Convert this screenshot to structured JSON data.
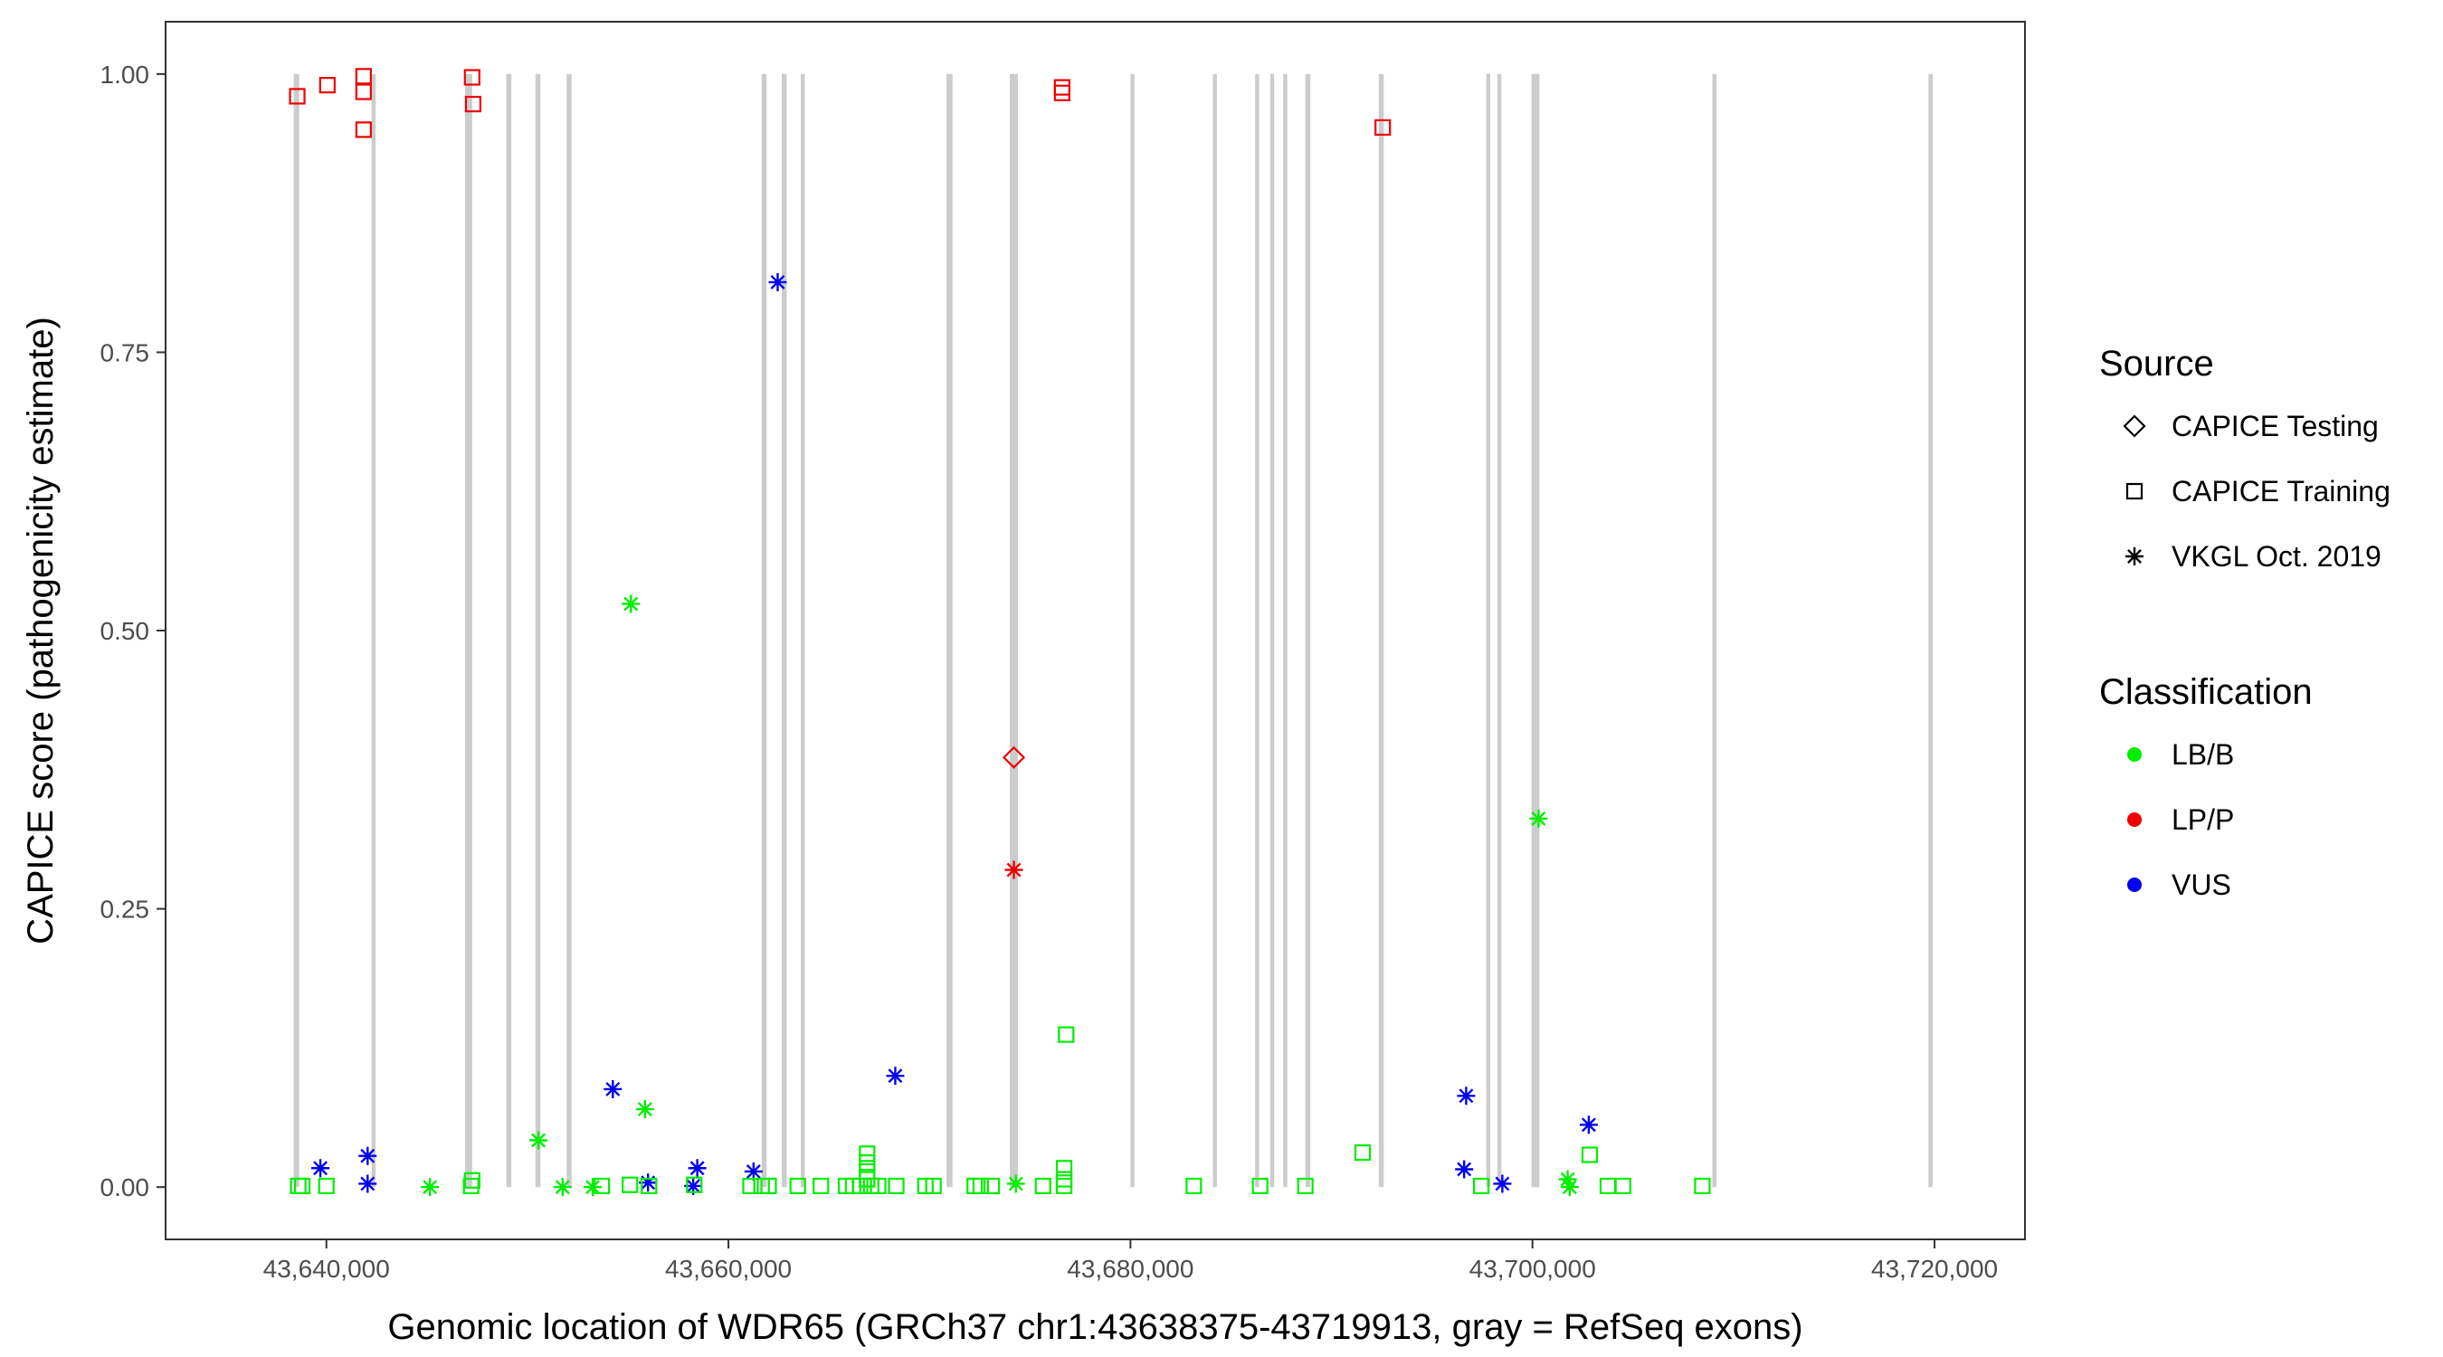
{
  "chart_data": {
    "type": "scatter",
    "xlabel": "Genomic location of WDR65 (GRCh37 chr1:43638375-43719913, gray = RefSeq exons)",
    "ylabel": "CAPICE score (pathogenicity estimate)",
    "xlim": [
      43632000,
      43724500
    ],
    "ylim": [
      -0.047,
      1.047
    ],
    "x_ticks": [
      43640000,
      43660000,
      43680000,
      43700000,
      43720000
    ],
    "x_tick_labels": [
      "43,640,000",
      "43,660,000",
      "43,680,000",
      "43,700,000",
      "43,720,000"
    ],
    "y_ticks": [
      0,
      0.25,
      0.5,
      0.75,
      1.0
    ],
    "y_tick_labels": [
      "0.00",
      "0.25",
      "0.50",
      "0.75",
      "1.00"
    ],
    "grid": false,
    "exons": [
      {
        "start": 43638375,
        "end": 43638650
      },
      {
        "start": 43642250,
        "end": 43642450
      },
      {
        "start": 43646900,
        "end": 43647250
      },
      {
        "start": 43648950,
        "end": 43649200
      },
      {
        "start": 43650400,
        "end": 43650650
      },
      {
        "start": 43651950,
        "end": 43652200
      },
      {
        "start": 43661650,
        "end": 43661900
      },
      {
        "start": 43662650,
        "end": 43662900
      },
      {
        "start": 43663600,
        "end": 43663800
      },
      {
        "start": 43670850,
        "end": 43671150
      },
      {
        "start": 43674000,
        "end": 43674400
      },
      {
        "start": 43680000,
        "end": 43680200
      },
      {
        "start": 43684100,
        "end": 43684300
      },
      {
        "start": 43686200,
        "end": 43686400
      },
      {
        "start": 43686950,
        "end": 43687150
      },
      {
        "start": 43687600,
        "end": 43687800
      },
      {
        "start": 43688700,
        "end": 43688950
      },
      {
        "start": 43692350,
        "end": 43692600
      },
      {
        "start": 43697700,
        "end": 43697900
      },
      {
        "start": 43698250,
        "end": 43698450
      },
      {
        "start": 43699950,
        "end": 43700350
      },
      {
        "start": 43708950,
        "end": 43709150
      },
      {
        "start": 43719700,
        "end": 43719913
      }
    ],
    "colors": {
      "LB/B": "#00ee00",
      "LP/P": "#ee0000",
      "VUS": "#0000ee",
      "exon": "#cccccc"
    },
    "points": [
      {
        "x": 43638550,
        "y": 0.98,
        "source": "CAPICE Training",
        "class": "LP/P"
      },
      {
        "x": 43640050,
        "y": 0.99,
        "source": "CAPICE Training",
        "class": "LP/P"
      },
      {
        "x": 43641850,
        "y": 0.998,
        "source": "CAPICE Training",
        "class": "LP/P"
      },
      {
        "x": 43641850,
        "y": 0.984,
        "source": "CAPICE Training",
        "class": "LP/P"
      },
      {
        "x": 43641850,
        "y": 0.95,
        "source": "CAPICE Training",
        "class": "LP/P"
      },
      {
        "x": 43647250,
        "y": 0.997,
        "source": "CAPICE Training",
        "class": "LP/P"
      },
      {
        "x": 43647300,
        "y": 0.973,
        "source": "CAPICE Training",
        "class": "LP/P"
      },
      {
        "x": 43676600,
        "y": 0.988,
        "source": "CAPICE Training",
        "class": "LP/P"
      },
      {
        "x": 43676600,
        "y": 0.983,
        "source": "CAPICE Training",
        "class": "LP/P"
      },
      {
        "x": 43692550,
        "y": 0.952,
        "source": "CAPICE Training",
        "class": "LP/P"
      },
      {
        "x": 43662450,
        "y": 0.813,
        "source": "VKGL Oct. 2019",
        "class": "VUS"
      },
      {
        "x": 43655150,
        "y": 0.524,
        "source": "VKGL Oct. 2019",
        "class": "LB/B"
      },
      {
        "x": 43674200,
        "y": 0.386,
        "source": "CAPICE Testing",
        "class": "LP/P"
      },
      {
        "x": 43700300,
        "y": 0.331,
        "source": "VKGL Oct. 2019",
        "class": "LB/B"
      },
      {
        "x": 43674200,
        "y": 0.285,
        "source": "VKGL Oct. 2019",
        "class": "LP/P"
      },
      {
        "x": 43676800,
        "y": 0.137,
        "source": "CAPICE Training",
        "class": "LB/B"
      },
      {
        "x": 43668300,
        "y": 0.1,
        "source": "VKGL Oct. 2019",
        "class": "VUS"
      },
      {
        "x": 43654250,
        "y": 0.088,
        "source": "VKGL Oct. 2019",
        "class": "VUS"
      },
      {
        "x": 43696700,
        "y": 0.082,
        "source": "VKGL Oct. 2019",
        "class": "VUS"
      },
      {
        "x": 43655850,
        "y": 0.07,
        "source": "VKGL Oct. 2019",
        "class": "LB/B"
      },
      {
        "x": 43702800,
        "y": 0.056,
        "source": "VKGL Oct. 2019",
        "class": "VUS"
      },
      {
        "x": 43650550,
        "y": 0.042,
        "source": "VKGL Oct. 2019",
        "class": "LB/B"
      },
      {
        "x": 43691550,
        "y": 0.031,
        "source": "CAPICE Training",
        "class": "LB/B"
      },
      {
        "x": 43702850,
        "y": 0.029,
        "source": "CAPICE Training",
        "class": "LB/B"
      },
      {
        "x": 43642050,
        "y": 0.028,
        "source": "VKGL Oct. 2019",
        "class": "VUS"
      },
      {
        "x": 43666900,
        "y": 0.03,
        "source": "CAPICE Training",
        "class": "LB/B"
      },
      {
        "x": 43666900,
        "y": 0.022,
        "source": "CAPICE Training",
        "class": "LB/B"
      },
      {
        "x": 43666900,
        "y": 0.014,
        "source": "CAPICE Training",
        "class": "LB/B"
      },
      {
        "x": 43666900,
        "y": 0.007,
        "source": "CAPICE Training",
        "class": "LB/B"
      },
      {
        "x": 43639700,
        "y": 0.017,
        "source": "VKGL Oct. 2019",
        "class": "VUS"
      },
      {
        "x": 43658450,
        "y": 0.017,
        "source": "VKGL Oct. 2019",
        "class": "VUS"
      },
      {
        "x": 43661250,
        "y": 0.014,
        "source": "VKGL Oct. 2019",
        "class": "VUS"
      },
      {
        "x": 43696600,
        "y": 0.016,
        "source": "VKGL Oct. 2019",
        "class": "VUS"
      },
      {
        "x": 43676700,
        "y": 0.017,
        "source": "CAPICE Training",
        "class": "LB/B"
      },
      {
        "x": 43676700,
        "y": 0.007,
        "source": "CAPICE Training",
        "class": "LB/B"
      },
      {
        "x": 43701750,
        "y": 0.007,
        "source": "VKGL Oct. 2019",
        "class": "LB/B"
      },
      {
        "x": 43647250,
        "y": 0.006,
        "source": "CAPICE Training",
        "class": "LB/B"
      },
      {
        "x": 43656000,
        "y": 0.004,
        "source": "VKGL Oct. 2019",
        "class": "VUS"
      },
      {
        "x": 43642050,
        "y": 0.003,
        "source": "VKGL Oct. 2019",
        "class": "VUS"
      },
      {
        "x": 43698500,
        "y": 0.003,
        "source": "VKGL Oct. 2019",
        "class": "VUS"
      },
      {
        "x": 43658250,
        "y": 0.001,
        "source": "VKGL Oct. 2019",
        "class": "VUS"
      },
      {
        "x": 43674300,
        "y": 0.003,
        "source": "VKGL Oct. 2019",
        "class": "LB/B"
      },
      {
        "x": 43638600,
        "y": 0.001,
        "source": "CAPICE Training",
        "class": "LB/B"
      },
      {
        "x": 43638800,
        "y": 0.001,
        "source": "CAPICE Training",
        "class": "LB/B"
      },
      {
        "x": 43640000,
        "y": 0.001,
        "source": "CAPICE Training",
        "class": "LB/B"
      },
      {
        "x": 43645150,
        "y": 0.0,
        "source": "VKGL Oct. 2019",
        "class": "LB/B"
      },
      {
        "x": 43647200,
        "y": 0.001,
        "source": "CAPICE Training",
        "class": "LB/B"
      },
      {
        "x": 43651750,
        "y": 0.0,
        "source": "VKGL Oct. 2019",
        "class": "LB/B"
      },
      {
        "x": 43653250,
        "y": 0.0,
        "source": "VKGL Oct. 2019",
        "class": "LB/B"
      },
      {
        "x": 43653700,
        "y": 0.001,
        "source": "CAPICE Training",
        "class": "LB/B"
      },
      {
        "x": 43655100,
        "y": 0.002,
        "source": "CAPICE Training",
        "class": "LB/B"
      },
      {
        "x": 43656050,
        "y": 0.001,
        "source": "CAPICE Training",
        "class": "LB/B"
      },
      {
        "x": 43658300,
        "y": 0.002,
        "source": "CAPICE Training",
        "class": "LB/B"
      },
      {
        "x": 43661100,
        "y": 0.001,
        "source": "CAPICE Training",
        "class": "LB/B"
      },
      {
        "x": 43661650,
        "y": 0.001,
        "source": "CAPICE Training",
        "class": "LB/B"
      },
      {
        "x": 43662000,
        "y": 0.001,
        "source": "CAPICE Training",
        "class": "LB/B"
      },
      {
        "x": 43663450,
        "y": 0.001,
        "source": "CAPICE Training",
        "class": "LB/B"
      },
      {
        "x": 43664600,
        "y": 0.001,
        "source": "CAPICE Training",
        "class": "LB/B"
      },
      {
        "x": 43665850,
        "y": 0.001,
        "source": "CAPICE Training",
        "class": "LB/B"
      },
      {
        "x": 43666200,
        "y": 0.001,
        "source": "CAPICE Training",
        "class": "LB/B"
      },
      {
        "x": 43666550,
        "y": 0.001,
        "source": "CAPICE Training",
        "class": "LB/B"
      },
      {
        "x": 43667100,
        "y": 0.001,
        "source": "CAPICE Training",
        "class": "LB/B"
      },
      {
        "x": 43667450,
        "y": 0.001,
        "source": "CAPICE Training",
        "class": "LB/B"
      },
      {
        "x": 43668350,
        "y": 0.001,
        "source": "CAPICE Training",
        "class": "LB/B"
      },
      {
        "x": 43669800,
        "y": 0.001,
        "source": "CAPICE Training",
        "class": "LB/B"
      },
      {
        "x": 43670200,
        "y": 0.001,
        "source": "CAPICE Training",
        "class": "LB/B"
      },
      {
        "x": 43672250,
        "y": 0.001,
        "source": "CAPICE Training",
        "class": "LB/B"
      },
      {
        "x": 43672550,
        "y": 0.001,
        "source": "CAPICE Training",
        "class": "LB/B"
      },
      {
        "x": 43673100,
        "y": 0.001,
        "source": "CAPICE Training",
        "class": "LB/B"
      },
      {
        "x": 43675650,
        "y": 0.001,
        "source": "CAPICE Training",
        "class": "LB/B"
      },
      {
        "x": 43676700,
        "y": 0.001,
        "source": "CAPICE Training",
        "class": "LB/B"
      },
      {
        "x": 43683150,
        "y": 0.001,
        "source": "CAPICE Training",
        "class": "LB/B"
      },
      {
        "x": 43686450,
        "y": 0.001,
        "source": "CAPICE Training",
        "class": "LB/B"
      },
      {
        "x": 43688700,
        "y": 0.001,
        "source": "CAPICE Training",
        "class": "LB/B"
      },
      {
        "x": 43697450,
        "y": 0.001,
        "source": "CAPICE Training",
        "class": "LB/B"
      },
      {
        "x": 43701850,
        "y": 0.0,
        "source": "VKGL Oct. 2019",
        "class": "LB/B"
      },
      {
        "x": 43703750,
        "y": 0.001,
        "source": "CAPICE Training",
        "class": "LB/B"
      },
      {
        "x": 43704500,
        "y": 0.001,
        "source": "CAPICE Training",
        "class": "LB/B"
      },
      {
        "x": 43708450,
        "y": 0.001,
        "source": "CAPICE Training",
        "class": "LB/B"
      }
    ]
  },
  "legend": {
    "source_title": "Source",
    "source_items": [
      {
        "shape": "diamond",
        "label": "CAPICE Testing"
      },
      {
        "shape": "square",
        "label": "CAPICE Training"
      },
      {
        "shape": "asterisk",
        "label": "VKGL Oct. 2019"
      }
    ],
    "class_title": "Classification",
    "class_items": [
      {
        "key": "LB/B",
        "label": "LB/B"
      },
      {
        "key": "LP/P",
        "label": "LP/P"
      },
      {
        "key": "VUS",
        "label": "VUS"
      }
    ]
  }
}
